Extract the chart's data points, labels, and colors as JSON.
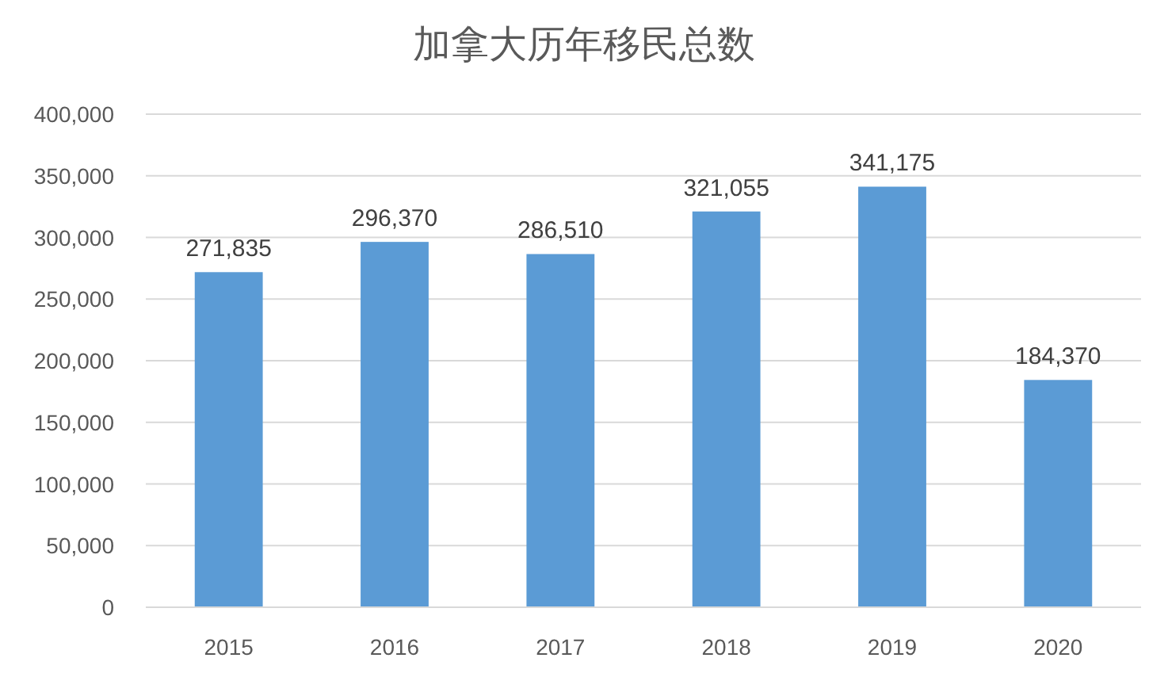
{
  "chart_data": {
    "type": "bar",
    "title": "加拿大历年移民总数",
    "categories": [
      "2015",
      "2016",
      "2017",
      "2018",
      "2019",
      "2020"
    ],
    "values": [
      271835,
      296370,
      286510,
      321055,
      341175,
      184370
    ],
    "color": "#5b9bd5",
    "ylim": [
      0,
      400000
    ],
    "yticks": [
      {
        "value": 0,
        "label": "0"
      },
      {
        "value": 50000,
        "label": "50,000"
      },
      {
        "value": 100000,
        "label": "100,000"
      },
      {
        "value": 150000,
        "label": "150,000"
      },
      {
        "value": 200000,
        "label": "200,000"
      },
      {
        "value": 250000,
        "label": "250,000"
      },
      {
        "value": 300000,
        "label": "300,000"
      },
      {
        "value": 350000,
        "label": "350,000"
      },
      {
        "value": 400000,
        "label": "400,000"
      }
    ],
    "grid": "y",
    "value_labels": [
      "271,835",
      "296,370",
      "286,510",
      "321,055",
      "341,175",
      "184,370"
    ]
  }
}
